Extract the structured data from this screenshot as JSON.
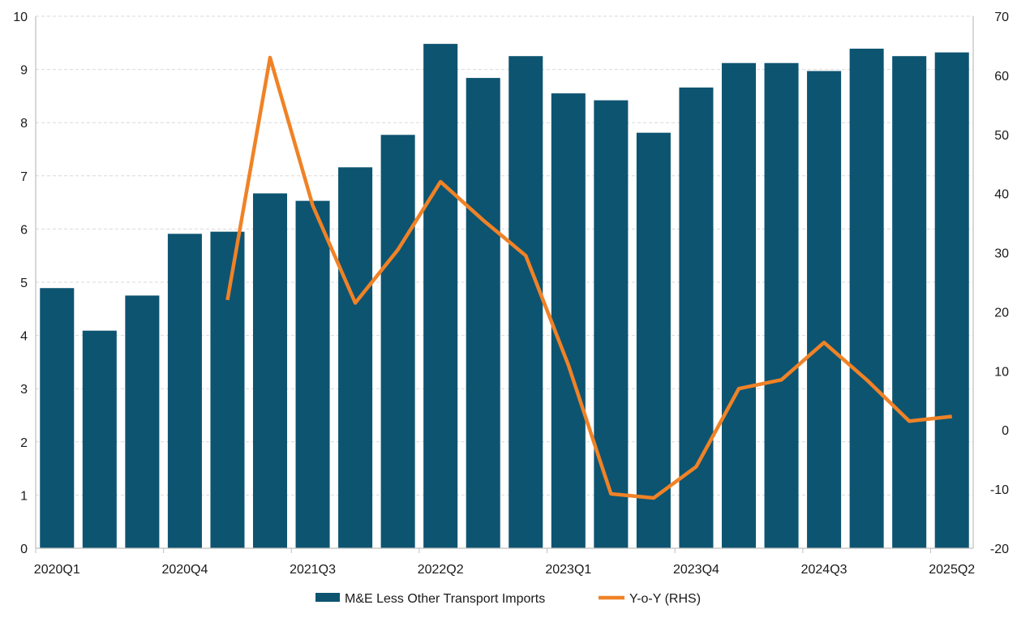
{
  "chart_data": {
    "type": "bar",
    "categories": [
      "2020Q1",
      "2020Q2",
      "2020Q3",
      "2020Q4",
      "2021Q1",
      "2021Q2",
      "2021Q3",
      "2021Q4",
      "2022Q1",
      "2022Q2",
      "2022Q3",
      "2022Q4",
      "2023Q1",
      "2023Q2",
      "2023Q3",
      "2023Q4",
      "2024Q1",
      "2024Q2",
      "2024Q3",
      "2024Q4",
      "2025Q1",
      "2025Q2"
    ],
    "x_tick_labels": [
      "2020Q1",
      "2020Q4",
      "2021Q3",
      "2022Q2",
      "2023Q1",
      "2023Q4",
      "2024Q3",
      "2025Q2"
    ],
    "series": [
      {
        "name": "M&E Less Other Transport Imports",
        "type": "bar",
        "axis": "left",
        "color": "#0d5471",
        "values": [
          4.89,
          4.09,
          4.75,
          5.91,
          5.95,
          6.67,
          6.53,
          7.16,
          7.77,
          9.48,
          8.84,
          9.25,
          8.55,
          8.42,
          7.81,
          8.66,
          9.12,
          9.12,
          8.97,
          9.39,
          9.25,
          9.32
        ]
      },
      {
        "name": "Y-o-Y (RHS)",
        "type": "line",
        "axis": "right",
        "color": "#f08226",
        "values": [
          null,
          null,
          null,
          null,
          22,
          63,
          38,
          21.5,
          30.5,
          42,
          35.5,
          29.5,
          11,
          -10.8,
          -11.5,
          -6.2,
          7,
          8.5,
          14.8,
          8.5,
          1.5,
          2.3
        ]
      }
    ],
    "y_left": {
      "ylim": [
        0,
        10
      ],
      "ticks": [
        0,
        1,
        2,
        3,
        4,
        5,
        6,
        7,
        8,
        9,
        10
      ]
    },
    "y_right": {
      "ylim": [
        -20,
        70
      ],
      "ticks": [
        -20,
        -10,
        0,
        10,
        20,
        30,
        40,
        50,
        60,
        70
      ]
    },
    "legend": {
      "position": "bottom",
      "items": [
        {
          "label": "M&E Less Other Transport Imports",
          "kind": "bar",
          "color": "#0d5471"
        },
        {
          "label": "Y-o-Y (RHS)",
          "kind": "line",
          "color": "#f08226"
        }
      ]
    },
    "grid": true
  }
}
